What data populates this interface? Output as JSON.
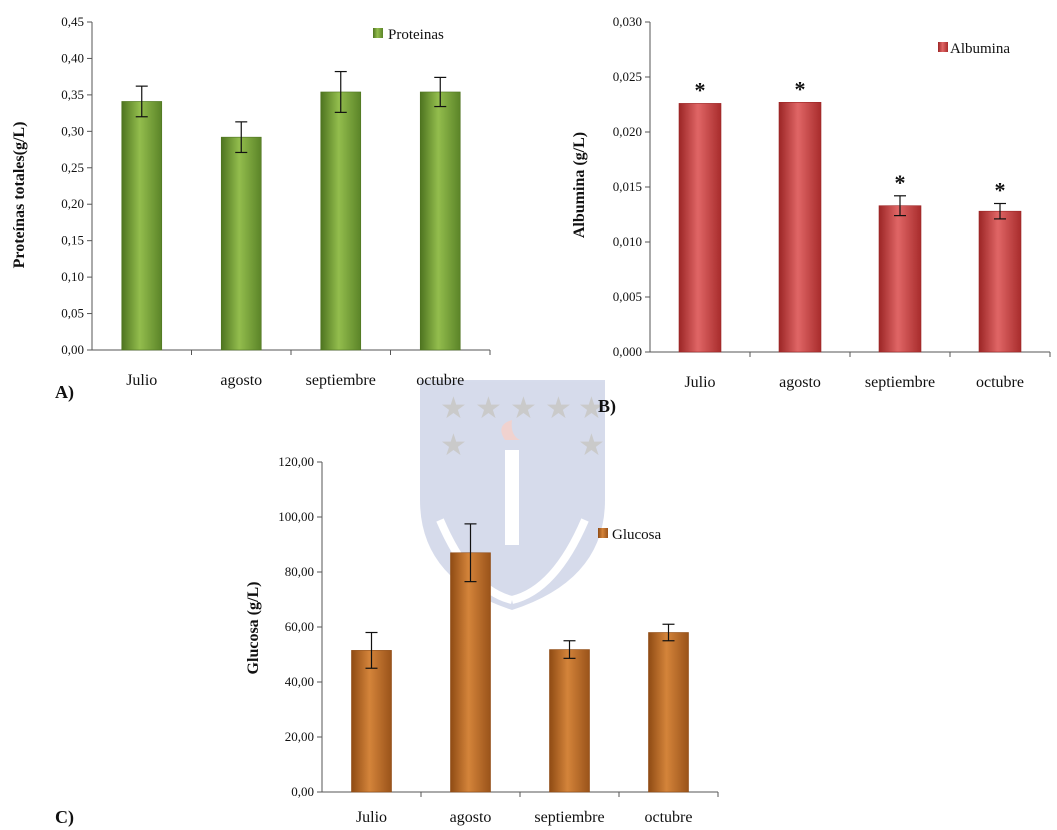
{
  "chart_data": [
    {
      "id": "A",
      "type": "bar",
      "panel_label": "A)",
      "title": "",
      "xlabel": "",
      "ylabel": "Proteínas totales(g/L)",
      "legend": "Proteinas",
      "legend_position": "top-right",
      "categories": [
        "Julio",
        "agosto",
        "septiembre",
        "octubre"
      ],
      "series": [
        {
          "name": "Proteinas",
          "values": [
            0.341,
            0.292,
            0.354,
            0.354
          ],
          "errors": [
            0.021,
            0.021,
            0.028,
            0.02
          ]
        }
      ],
      "ylim": [
        0,
        0.45
      ],
      "yticks": [
        "0,00",
        "0,05",
        "0,10",
        "0,15",
        "0,20",
        "0,25",
        "0,30",
        "0,35",
        "0,40",
        "0,45"
      ],
      "significance": [
        "",
        "",
        "",
        ""
      ],
      "color": "#6f9a30",
      "color_dark": "#4e7420",
      "color_light": "#93bd4d",
      "grid": false
    },
    {
      "id": "B",
      "type": "bar",
      "panel_label": "B)",
      "title": "",
      "xlabel": "",
      "ylabel": "Albumina (g/L)",
      "legend": "Albumina",
      "legend_position": "top-right",
      "categories": [
        "Julio",
        "agosto",
        "septiembre",
        "octubre"
      ],
      "series": [
        {
          "name": "Albumina",
          "values": [
            0.0226,
            0.0227,
            0.0133,
            0.0128
          ],
          "errors": [
            0,
            0,
            0.0009,
            0.0007
          ]
        }
      ],
      "ylim": [
        0,
        0.03
      ],
      "yticks": [
        "0,000",
        "0,005",
        "0,010",
        "0,015",
        "0,020",
        "0,025",
        "0,030"
      ],
      "significance": [
        "*",
        "*",
        "*",
        "*"
      ],
      "color": "#c93a3a",
      "color_dark": "#9c2626",
      "color_light": "#e06666",
      "grid": false
    },
    {
      "id": "C",
      "type": "bar",
      "panel_label": "C)",
      "title": "",
      "xlabel": "",
      "ylabel": "Glucosa (g/L)",
      "legend": "Glucosa",
      "legend_position": "center-right",
      "categories": [
        "Julio",
        "agosto",
        "septiembre",
        "octubre"
      ],
      "series": [
        {
          "name": "Glucosa",
          "values": [
            51.5,
            87.0,
            51.8,
            58.0
          ],
          "errors": [
            6.5,
            10.5,
            3.2,
            3.0
          ]
        }
      ],
      "ylim": [
        0,
        120
      ],
      "yticks": [
        "0,00",
        "20,00",
        "40,00",
        "60,00",
        "80,00",
        "100,00",
        "120,00"
      ],
      "significance": [
        "",
        "",
        "",
        ""
      ],
      "color": "#b8651f",
      "color_dark": "#8f4b14",
      "color_light": "#d4843a",
      "grid": false
    }
  ],
  "watermark": {
    "kind": "university-seal",
    "color": "#4a5fa8",
    "accent": "#c0392b"
  }
}
